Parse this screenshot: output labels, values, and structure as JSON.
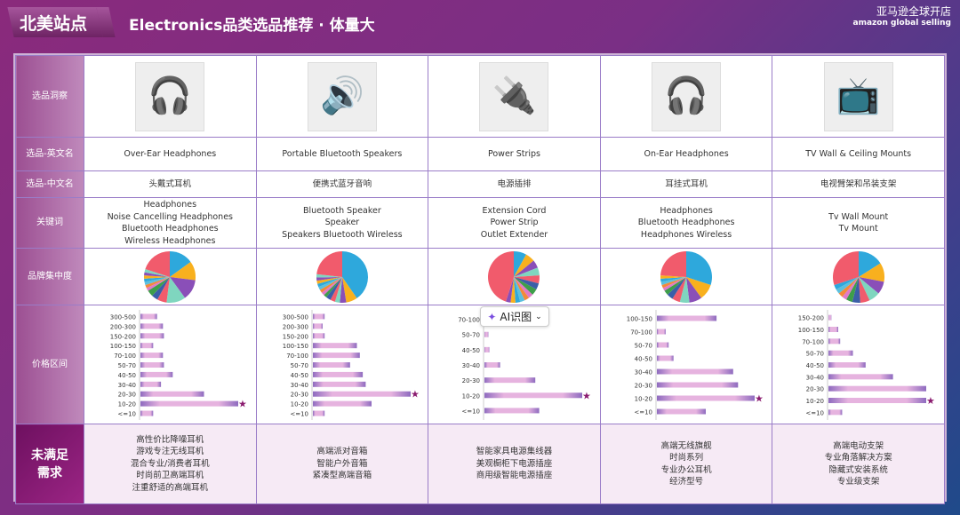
{
  "header": {
    "tag": "北美站点",
    "title": "Electronics品类选品推荐 · 体量大",
    "brand_cn": "亚马逊全球开店",
    "brand_en": "amazon global selling"
  },
  "row_labels": {
    "image": "选品洞察",
    "english": "选品-英文名",
    "chinese": "选品-中文名",
    "keywords": "关键词",
    "brand": "品牌集中度",
    "price": "价格区间",
    "needs": "未满足\n需求"
  },
  "ai_button": {
    "label": "AI识图",
    "icon": "sparkle-scan-icon",
    "chevron": "chevron-down-icon"
  },
  "colors": {
    "pie": [
      "#2ea8dc",
      "#f8b01e",
      "#8a4fb8",
      "#7fd6bf",
      "#f15b6c",
      "#3b5ea8",
      "#3e9e4a",
      "#e07ac8",
      "#f28a3a",
      "#5bc0de"
    ],
    "bar_end": "#8e6bbf",
    "bar_mid": "#e6b3df",
    "star": "#8a1a6e"
  },
  "columns": [
    {
      "image_icon": "over-ear-headphones-image",
      "english": "Over-Ear Headphones",
      "chinese": "头戴式耳机",
      "keywords": [
        "Headphones",
        "Noise Cancelling Headphones",
        "Bluetooth Headphones",
        "Wireless Headphones"
      ],
      "pie": [
        15,
        12,
        13,
        12,
        6,
        4,
        4,
        2,
        2,
        2,
        2,
        2,
        2,
        2,
        20
      ],
      "price": {
        "labels": [
          "300-500",
          "200-300",
          "150-200",
          "100-150",
          "70-100",
          "50-70",
          "40-50",
          "30-40",
          "20-30",
          "10-20",
          "<=10"
        ],
        "values": [
          17,
          23,
          24,
          13,
          23,
          24,
          33,
          21,
          65,
          100,
          13
        ]
      },
      "needs": [
        "高性价比降噪耳机",
        "游戏专注无线耳机",
        "混合专业/消费者耳机",
        "时尚前卫高端耳机",
        "注重舒适的高端耳机"
      ]
    },
    {
      "image_icon": "bluetooth-speaker-image",
      "english": "Portable Bluetooth Speakers",
      "chinese": "便携式蓝牙音响",
      "keywords": [
        "Bluetooth Speaker",
        "Speaker",
        "Speakers Bluetooth Wireless"
      ],
      "pie": [
        40,
        7,
        4,
        3,
        3,
        3,
        2,
        2,
        2,
        2,
        2,
        2,
        2,
        2,
        23
      ],
      "price": {
        "labels": [
          "300-500",
          "200-300",
          "150-200",
          "100-150",
          "70-100",
          "50-70",
          "40-50",
          "30-40",
          "20-30",
          "10-20",
          "<=10"
        ],
        "values": [
          12,
          10,
          12,
          45,
          48,
          38,
          51,
          54,
          100,
          60,
          12
        ]
      },
      "needs": [
        "高端派对音箱",
        "智能户外音箱",
        "紧凑型高端音箱"
      ]
    },
    {
      "image_icon": "power-strip-image",
      "english": "Power Strips",
      "chinese": "电源插排",
      "keywords": [
        "Extension Cord",
        "Power Strip",
        "Outlet Extender"
      ],
      "pie": [
        8,
        6,
        5,
        5,
        5,
        4,
        4,
        3,
        3,
        3,
        3,
        3,
        3,
        45
      ],
      "price": {
        "labels": [
          "70-100",
          "50-70",
          "40-50",
          "30-40",
          "20-30",
          "10-20",
          "<=10"
        ],
        "values": [
          3,
          4,
          5,
          16,
          52,
          100,
          56
        ]
      },
      "needs": [
        "智能家具电源集线器",
        "美观橱柜下电源插座",
        "商用级智能电源插座"
      ]
    },
    {
      "image_icon": "on-ear-headphones-image",
      "english": "On-Ear Headphones",
      "chinese": "耳挂式耳机",
      "keywords": [
        "Headphones",
        "Bluetooth Headphones",
        "Headphones Wireless"
      ],
      "pie": [
        30,
        10,
        8,
        6,
        5,
        4,
        3,
        2,
        2,
        2,
        2,
        2,
        24
      ],
      "price": {
        "labels": [
          "100-150",
          "70-100",
          "50-70",
          "40-50",
          "30-40",
          "20-30",
          "10-20",
          "<=10"
        ],
        "values": [
          61,
          9,
          12,
          17,
          78,
          83,
          100,
          50
        ]
      },
      "needs": [
        "高端无线旗舰",
        "时尚系列",
        "专业办公耳机",
        "经济型号"
      ]
    },
    {
      "image_icon": "tv-mount-image",
      "english": "TV Wall & Ceiling Mounts",
      "chinese": "电视臂架和吊装支架",
      "keywords": [
        "Tv Wall Mount",
        "Tv Mount"
      ],
      "pie": [
        16,
        12,
        8,
        7,
        6,
        5,
        4,
        3,
        3,
        3,
        3,
        30
      ],
      "price": {
        "labels": [
          "150-200",
          "100-150",
          "70-100",
          "50-70",
          "40-50",
          "30-40",
          "20-30",
          "10-20",
          "<=10"
        ],
        "values": [
          3,
          10,
          12,
          25,
          38,
          66,
          100,
          100,
          14
        ]
      },
      "needs": [
        "高端电动支架",
        "专业角落解决方案",
        "隐藏式安装系统",
        "专业级支架"
      ]
    }
  ]
}
